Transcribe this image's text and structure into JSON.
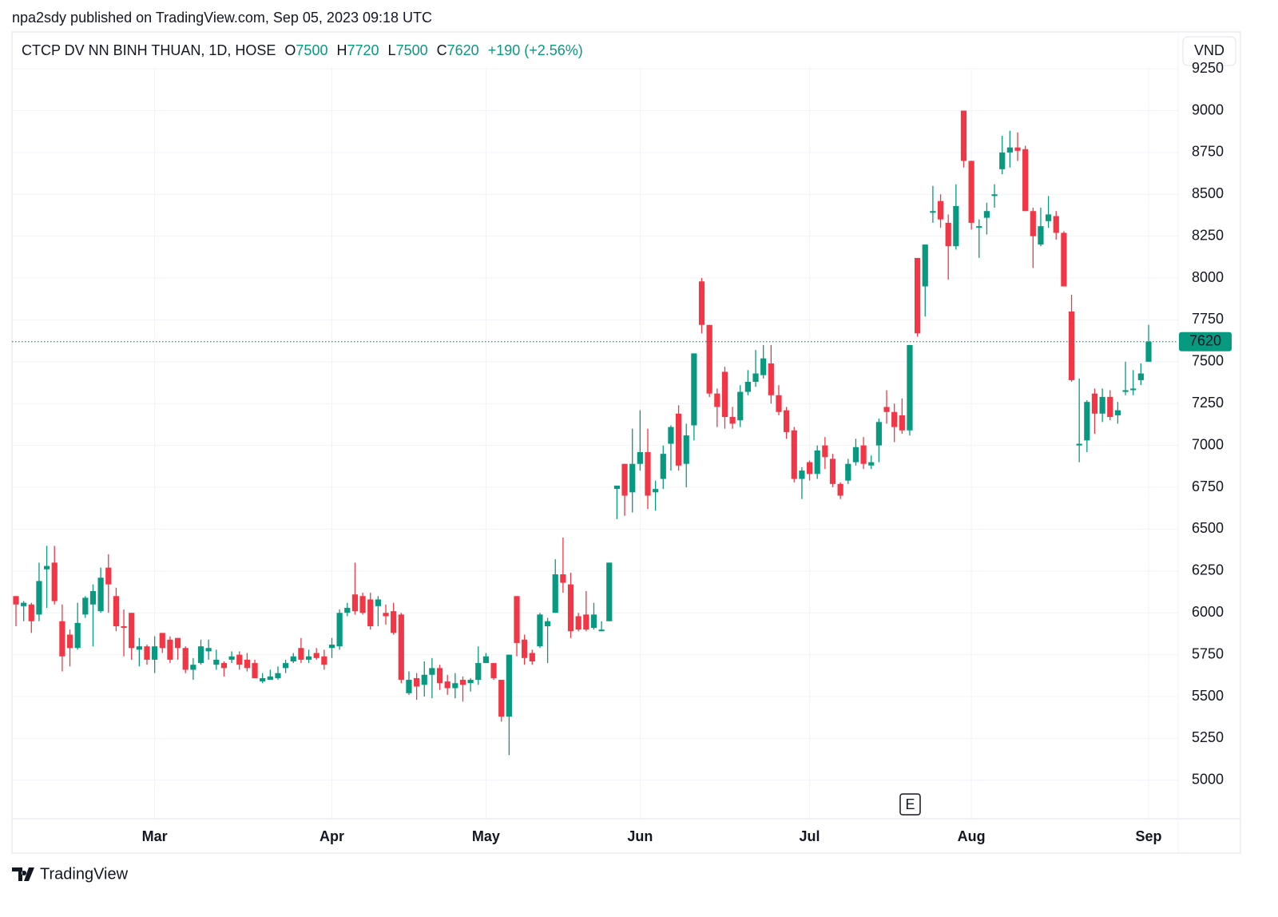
{
  "header": {
    "published": "npa2sdy published on TradingView.com, Sep 05, 2023 09:18 UTC",
    "symbol": "CTCP DV NN BINH THUAN, 1D, HOSE",
    "o_label": "O",
    "h_label": "H",
    "l_label": "L",
    "c_label": "C",
    "change": "+190 (+2.56%)",
    "currency": "VND",
    "event_marker": "E"
  },
  "footer": {
    "brand": "TradingView"
  },
  "chart_data": {
    "type": "candlestick",
    "categories": [
      null,
      null,
      null,
      null,
      null,
      null,
      null,
      null,
      null,
      null,
      null,
      null,
      null,
      null,
      null,
      null,
      null,
      null,
      "Mar",
      null,
      null,
      null,
      null,
      null,
      null,
      null,
      null,
      null,
      null,
      null,
      null,
      null,
      null,
      null,
      null,
      null,
      null,
      null,
      null,
      null,
      null,
      "Apr",
      null,
      null,
      null,
      null,
      null,
      null,
      null,
      null,
      null,
      null,
      null,
      null,
      null,
      null,
      null,
      null,
      null,
      null,
      null,
      "May",
      null,
      null,
      null,
      null,
      null,
      null,
      null,
      null,
      null,
      null,
      null,
      null,
      null,
      null,
      null,
      null,
      null,
      null,
      null,
      "Jun",
      null,
      null,
      null,
      null,
      null,
      null,
      null,
      null,
      null,
      null,
      null,
      null,
      null,
      null,
      null,
      null,
      null,
      null,
      null,
      null,
      null,
      "Jul",
      null,
      null,
      null,
      null,
      null,
      null,
      null,
      null,
      null,
      null,
      null,
      null,
      null,
      null,
      null,
      null,
      null,
      null,
      null,
      null,
      "Aug",
      null,
      null,
      null,
      null,
      null,
      null,
      null,
      null,
      null,
      null,
      null,
      null,
      null,
      null,
      null,
      null,
      null,
      null,
      null,
      null,
      null,
      null,
      "Sep"
    ],
    "open": [
      6100,
      6040,
      6050,
      5990,
      6260,
      6300,
      5950,
      5870,
      5790,
      5990,
      6050,
      6010,
      6270,
      6100,
      5920,
      6000,
      5780,
      5800,
      5720,
      5880,
      5840,
      5850,
      5790,
      5660,
      5700,
      5770,
      5690,
      5700,
      5720,
      5750,
      5720,
      5700,
      5590,
      5600,
      5610,
      5670,
      5710,
      5790,
      5720,
      5760,
      5740,
      5790,
      5800,
      6000,
      6110,
      6100,
      6080,
      6040,
      6000,
      6010,
      5990,
      5520,
      5610,
      5570,
      5630,
      5670,
      5590,
      5550,
      5600,
      5580,
      5600,
      5700,
      5700,
      5600,
      5380,
      6100,
      5840,
      5760,
      5800,
      5920,
      6000,
      6230,
      6170,
      5980,
      5990,
      5910,
      5890,
      5950,
      6740,
      6890,
      6720,
      6890,
      6960,
      6720,
      6800,
      7010,
      7190,
      6890,
      7120,
      7980,
      7720,
      7310,
      7440,
      7170,
      7150,
      7320,
      7380,
      7420,
      7490,
      7300,
      7210,
      7090,
      6800,
      6900,
      6830,
      7000,
      6920,
      6770,
      6790,
      6900,
      7000,
      6880,
      7000,
      7230,
      7200,
      7180,
      7090,
      8120,
      7950,
      8390,
      8460,
      8330,
      8190,
      9000,
      8700,
      8300,
      8360,
      8490,
      8650,
      8750,
      8780,
      8770,
      8400,
      8200,
      8340,
      8370,
      8270,
      7800,
      7000,
      7030,
      7310,
      7190,
      7290,
      7180,
      7320,
      7330,
      7390,
      7500
    ],
    "high": [
      6100,
      6070,
      6060,
      6300,
      6400,
      6400,
      6050,
      5900,
      6060,
      6100,
      6170,
      6270,
      6350,
      6150,
      6020,
      6000,
      5850,
      5810,
      5860,
      5880,
      5860,
      5850,
      5800,
      5730,
      5840,
      5840,
      5780,
      5710,
      5770,
      5770,
      5760,
      5720,
      5640,
      5660,
      5680,
      5720,
      5760,
      5850,
      5780,
      5790,
      5780,
      5850,
      6020,
      6060,
      6300,
      6120,
      6120,
      6100,
      6050,
      6060,
      6000,
      5650,
      5640,
      5710,
      5730,
      5690,
      5630,
      5640,
      5620,
      5610,
      5800,
      5760,
      5700,
      5600,
      5750,
      6100,
      5870,
      5780,
      6000,
      5970,
      6320,
      6450,
      6240,
      6000,
      6130,
      6060,
      5950,
      6300,
      6760,
      6890,
      7100,
      7210,
      7100,
      6790,
      7000,
      7120,
      7240,
      7130,
      7550,
      8000,
      7720,
      7340,
      7470,
      7230,
      7360,
      7450,
      7570,
      7600,
      7600,
      7360,
      7230,
      7110,
      6870,
      6910,
      7000,
      7050,
      6950,
      6780,
      6920,
      7040,
      7050,
      6940,
      7160,
      7330,
      7250,
      7280,
      7600,
      8120,
      8200,
      8550,
      8500,
      8380,
      8560,
      9000,
      8700,
      8350,
      8450,
      8560,
      8850,
      8880,
      8870,
      8790,
      8420,
      8420,
      8490,
      8400,
      8280,
      7900,
      7400,
      7270,
      7340,
      7340,
      7330,
      7260,
      7500,
      7450,
      7490,
      7720
    ],
    "low": [
      5920,
      5950,
      5880,
      5950,
      6030,
      6050,
      5650,
      5680,
      5780,
      5970,
      5800,
      6000,
      6000,
      5890,
      5740,
      5720,
      5680,
      5690,
      5640,
      5760,
      5700,
      5720,
      5640,
      5600,
      5690,
      5720,
      5660,
      5620,
      5700,
      5660,
      5650,
      5610,
      5580,
      5600,
      5600,
      5640,
      5700,
      5700,
      5700,
      5720,
      5660,
      5730,
      5780,
      5980,
      5990,
      5990,
      5900,
      5920,
      5930,
      5870,
      5580,
      5510,
      5480,
      5500,
      5490,
      5540,
      5510,
      5490,
      5470,
      5530,
      5570,
      5700,
      5600,
      5350,
      5150,
      5740,
      5690,
      5690,
      5790,
      5700,
      6000,
      6120,
      5850,
      5890,
      5890,
      5900,
      5890,
      5950,
      6560,
      6580,
      6600,
      6850,
      6620,
      6610,
      6740,
      6850,
      6850,
      6750,
      7030,
      7670,
      7290,
      7110,
      7100,
      7100,
      7110,
      7300,
      7350,
      7400,
      7250,
      7180,
      7040,
      6780,
      6680,
      6790,
      6800,
      6860,
      6750,
      6680,
      6770,
      6880,
      6860,
      6860,
      6900,
      7130,
      7020,
      7070,
      7060,
      7650,
      7770,
      8330,
      8300,
      7990,
      8170,
      8660,
      8290,
      8120,
      8260,
      8420,
      8620,
      8660,
      8700,
      8400,
      8060,
      8190,
      8300,
      8230,
      7950,
      7380,
      6900,
      6960,
      7070,
      7140,
      7150,
      7130,
      7300,
      7300,
      7360,
      7500
    ],
    "close": [
      6050,
      6060,
      5950,
      6190,
      6280,
      6070,
      5740,
      5790,
      5940,
      6090,
      6130,
      6210,
      6170,
      5920,
      5910,
      5790,
      5800,
      5720,
      5800,
      5790,
      5720,
      5790,
      5660,
      5690,
      5800,
      5790,
      5720,
      5670,
      5740,
      5690,
      5670,
      5610,
      5610,
      5620,
      5640,
      5700,
      5740,
      5720,
      5740,
      5730,
      5690,
      5810,
      6000,
      6030,
      6010,
      6000,
      5920,
      6080,
      5980,
      5880,
      5600,
      5600,
      5560,
      5630,
      5670,
      5580,
      5550,
      5580,
      5570,
      5600,
      5700,
      5740,
      5610,
      5380,
      5750,
      5820,
      5730,
      5710,
      5990,
      5950,
      6230,
      6180,
      5890,
      5900,
      5900,
      5990,
      5900,
      6300,
      6760,
      6700,
      6890,
      6960,
      6700,
      6740,
      6950,
      7110,
      6880,
      7060,
      7550,
      7720,
      7310,
      7230,
      7170,
      7130,
      7320,
      7380,
      7430,
      7520,
      7300,
      7200,
      7080,
      6800,
      6850,
      6830,
      6970,
      6930,
      6770,
      6700,
      6890,
      6990,
      6890,
      6900,
      7140,
      7200,
      7110,
      7090,
      7600,
      7670,
      8200,
      8400,
      8350,
      8190,
      8430,
      8700,
      8330,
      8310,
      8400,
      8500,
      8750,
      8780,
      8760,
      8400,
      8250,
      8310,
      8380,
      8270,
      7950,
      7390,
      7010,
      7260,
      7190,
      7290,
      7170,
      7210,
      7330,
      7340,
      7430,
      7620
    ],
    "up_color": "#089981",
    "down_color": "#f23645",
    "ylim": [
      4770,
      9470
    ],
    "yticks": [
      5000,
      5250,
      5500,
      5750,
      6000,
      6250,
      6500,
      6750,
      7000,
      7250,
      7500,
      7750,
      8000,
      8250,
      8500,
      8750,
      9000,
      9250
    ],
    "grid": true
  }
}
